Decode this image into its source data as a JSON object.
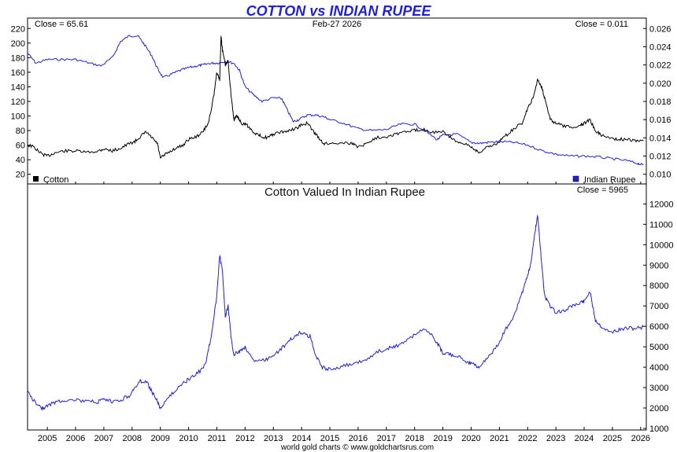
{
  "chart_data": [
    {
      "type": "line",
      "title": "COTTON vs INDIAN RUPEE",
      "date_label": "Feb-27  2026",
      "close_left": "Close = 65.61",
      "close_right": "Close = 0.011",
      "xlabel": "",
      "x_ticks": [
        "2005",
        "2006",
        "2007",
        "2008",
        "2009",
        "2010",
        "2011",
        "2012",
        "2013",
        "2014",
        "2015",
        "2016",
        "2017",
        "2018",
        "2019",
        "2020",
        "2021",
        "2022",
        "2023",
        "2024",
        "2025",
        "2026"
      ],
      "xlim": [
        2004.3,
        2026.2
      ],
      "y_left_ticks": [
        "20",
        "40",
        "60",
        "80",
        "100",
        "120",
        "140",
        "160",
        "180",
        "200",
        "220"
      ],
      "ylim_left": [
        10,
        230
      ],
      "y_right_ticks": [
        "0.010",
        "0.012",
        "0.014",
        "0.016",
        "0.018",
        "0.020",
        "0.022",
        "0.024",
        "0.026"
      ],
      "ylim_right": [
        0.0092,
        0.0268
      ],
      "legend_left": "Cotton",
      "legend_right": "Indian Rupee",
      "legend_placement": "bottom",
      "grid": false,
      "series": [
        {
          "name": "Cotton",
          "axis": "left",
          "color": "#000000",
          "x": [
            2004.3,
            2004.5,
            2004.8,
            2005.0,
            2005.3,
            2005.6,
            2006.0,
            2006.4,
            2006.8,
            2007.0,
            2007.3,
            2007.6,
            2007.9,
            2008.1,
            2008.3,
            2008.5,
            2008.7,
            2008.9,
            2009.0,
            2009.2,
            2009.5,
            2009.8,
            2010.0,
            2010.3,
            2010.5,
            2010.7,
            2010.9,
            2011.0,
            2011.1,
            2011.15,
            2011.2,
            2011.3,
            2011.4,
            2011.5,
            2011.6,
            2011.7,
            2011.8,
            2011.9,
            2012.0,
            2012.2,
            2012.4,
            2012.6,
            2012.8,
            2013.0,
            2013.3,
            2013.6,
            2013.9,
            2014.0,
            2014.2,
            2014.4,
            2014.6,
            2014.8,
            2015.0,
            2015.4,
            2015.8,
            2016.0,
            2016.3,
            2016.6,
            2017.0,
            2017.3,
            2017.6,
            2018.0,
            2018.3,
            2018.6,
            2019.0,
            2019.3,
            2019.6,
            2019.9,
            2020.1,
            2020.3,
            2020.6,
            2020.9,
            2021.2,
            2021.5,
            2021.8,
            2022.0,
            2022.2,
            2022.35,
            2022.5,
            2022.6,
            2022.8,
            2023.0,
            2023.3,
            2023.6,
            2023.9,
            2024.0,
            2024.2,
            2024.4,
            2024.6,
            2024.9,
            2025.2,
            2025.5,
            2025.8,
            2026.1
          ],
          "y": [
            60,
            58,
            48,
            45,
            50,
            52,
            52,
            50,
            52,
            55,
            52,
            56,
            62,
            65,
            72,
            78,
            70,
            62,
            42,
            48,
            55,
            60,
            68,
            72,
            78,
            90,
            130,
            160,
            150,
            210,
            190,
            170,
            175,
            130,
            95,
            100,
            95,
            88,
            90,
            82,
            75,
            72,
            70,
            75,
            78,
            80,
            85,
            88,
            90,
            80,
            70,
            62,
            62,
            64,
            62,
            58,
            62,
            70,
            72,
            75,
            78,
            80,
            82,
            78,
            78,
            70,
            62,
            60,
            55,
            50,
            58,
            62,
            72,
            82,
            90,
            110,
            125,
            150,
            140,
            125,
            95,
            90,
            86,
            84,
            88,
            90,
            95,
            80,
            74,
            70,
            68,
            68,
            66,
            66
          ]
        },
        {
          "name": "Indian Rupee",
          "axis": "right",
          "color": "#1f1fe0",
          "x": [
            2004.3,
            2004.6,
            2005.0,
            2005.5,
            2006.0,
            2006.5,
            2006.9,
            2007.3,
            2007.6,
            2007.9,
            2008.2,
            2008.4,
            2008.7,
            2008.9,
            2009.1,
            2009.4,
            2009.7,
            2010.0,
            2010.3,
            2010.5,
            2010.8,
            2011.0,
            2011.3,
            2011.6,
            2011.8,
            2012.0,
            2012.3,
            2012.6,
            2013.0,
            2013.3,
            2013.5,
            2013.7,
            2013.9,
            2014.2,
            2014.5,
            2014.8,
            2015.0,
            2015.5,
            2016.0,
            2016.5,
            2017.0,
            2017.5,
            2018.0,
            2018.4,
            2018.8,
            2019.0,
            2019.5,
            2020.0,
            2020.3,
            2020.6,
            2021.0,
            2021.5,
            2022.0,
            2022.5,
            2023.0,
            2023.5,
            2024.0,
            2024.5,
            2025.0,
            2025.5,
            2025.9,
            2026.1
          ],
          "y": [
            0.0233,
            0.0222,
            0.0226,
            0.0226,
            0.0226,
            0.0222,
            0.0219,
            0.0228,
            0.0246,
            0.0252,
            0.0252,
            0.0244,
            0.023,
            0.0216,
            0.0206,
            0.021,
            0.0214,
            0.0217,
            0.0219,
            0.022,
            0.0222,
            0.0222,
            0.0224,
            0.0222,
            0.0214,
            0.0196,
            0.0187,
            0.018,
            0.0184,
            0.0183,
            0.017,
            0.0158,
            0.016,
            0.0165,
            0.0165,
            0.0163,
            0.016,
            0.0156,
            0.015,
            0.0148,
            0.0149,
            0.0155,
            0.0155,
            0.0147,
            0.0138,
            0.0143,
            0.0144,
            0.0135,
            0.0134,
            0.0135,
            0.0136,
            0.0135,
            0.0132,
            0.0126,
            0.0122,
            0.012,
            0.012,
            0.0119,
            0.0117,
            0.0115,
            0.0112,
            0.011
          ]
        }
      ]
    },
    {
      "type": "line",
      "title": "Cotton Valued In Indian Rupee",
      "close_right": "Close = 5965",
      "xlabel": "",
      "x_ticks": [
        "2005",
        "2006",
        "2007",
        "2008",
        "2009",
        "2010",
        "2011",
        "2012",
        "2013",
        "2014",
        "2015",
        "2016",
        "2017",
        "2018",
        "2019",
        "2020",
        "2021",
        "2022",
        "2023",
        "2024",
        "2025",
        "2026"
      ],
      "xlim": [
        2004.3,
        2026.2
      ],
      "y_right_ticks": [
        "1000",
        "2000",
        "3000",
        "4000",
        "5000",
        "6000",
        "7000",
        "8000",
        "9000",
        "10000",
        "11000",
        "12000"
      ],
      "ylim": [
        1000,
        12400
      ],
      "grid": false,
      "series": [
        {
          "name": "",
          "color": "#1f1fe0",
          "x": [
            2004.3,
            2004.5,
            2004.8,
            2005.0,
            2005.3,
            2005.6,
            2006.0,
            2006.4,
            2006.8,
            2007.0,
            2007.3,
            2007.6,
            2007.9,
            2008.1,
            2008.3,
            2008.5,
            2008.7,
            2008.9,
            2009.0,
            2009.3,
            2009.6,
            2009.9,
            2010.1,
            2010.4,
            2010.6,
            2010.8,
            2011.0,
            2011.1,
            2011.2,
            2011.3,
            2011.4,
            2011.5,
            2011.6,
            2011.8,
            2012.0,
            2012.3,
            2012.6,
            2012.9,
            2013.2,
            2013.5,
            2013.8,
            2014.0,
            2014.3,
            2014.5,
            2014.7,
            2015.0,
            2015.4,
            2015.8,
            2016.2,
            2016.6,
            2017.0,
            2017.3,
            2017.7,
            2018.0,
            2018.4,
            2018.8,
            2019.0,
            2019.3,
            2019.6,
            2019.9,
            2020.1,
            2020.3,
            2020.6,
            2020.9,
            2021.2,
            2021.5,
            2021.8,
            2022.0,
            2022.1,
            2022.25,
            2022.35,
            2022.5,
            2022.6,
            2022.8,
            2023.0,
            2023.3,
            2023.6,
            2023.9,
            2024.0,
            2024.2,
            2024.4,
            2024.6,
            2024.9,
            2025.2,
            2025.5,
            2025.8,
            2026.1
          ],
          "y": [
            2800,
            2400,
            2000,
            2100,
            2300,
            2400,
            2400,
            2300,
            2300,
            2400,
            2300,
            2400,
            2600,
            3000,
            3300,
            3300,
            2800,
            2300,
            2000,
            2500,
            3000,
            3300,
            3500,
            3800,
            4200,
            5500,
            7500,
            9500,
            8700,
            6500,
            7000,
            5500,
            4600,
            4800,
            5000,
            4300,
            4300,
            4500,
            4800,
            5200,
            5600,
            5700,
            5500,
            4600,
            4000,
            3900,
            4000,
            4200,
            4300,
            4700,
            4900,
            5000,
            5300,
            5600,
            5900,
            5200,
            4700,
            4600,
            4500,
            4200,
            4100,
            4000,
            4500,
            5000,
            5800,
            6500,
            7600,
            8500,
            9000,
            10500,
            11500,
            9000,
            7500,
            7000,
            6700,
            6800,
            7000,
            7200,
            7200,
            7700,
            6300,
            6000,
            5700,
            5800,
            5900,
            5900,
            5965
          ]
        }
      ]
    }
  ],
  "footer": {
    "credit": "world gold charts © www.goldchartsrus.com"
  }
}
